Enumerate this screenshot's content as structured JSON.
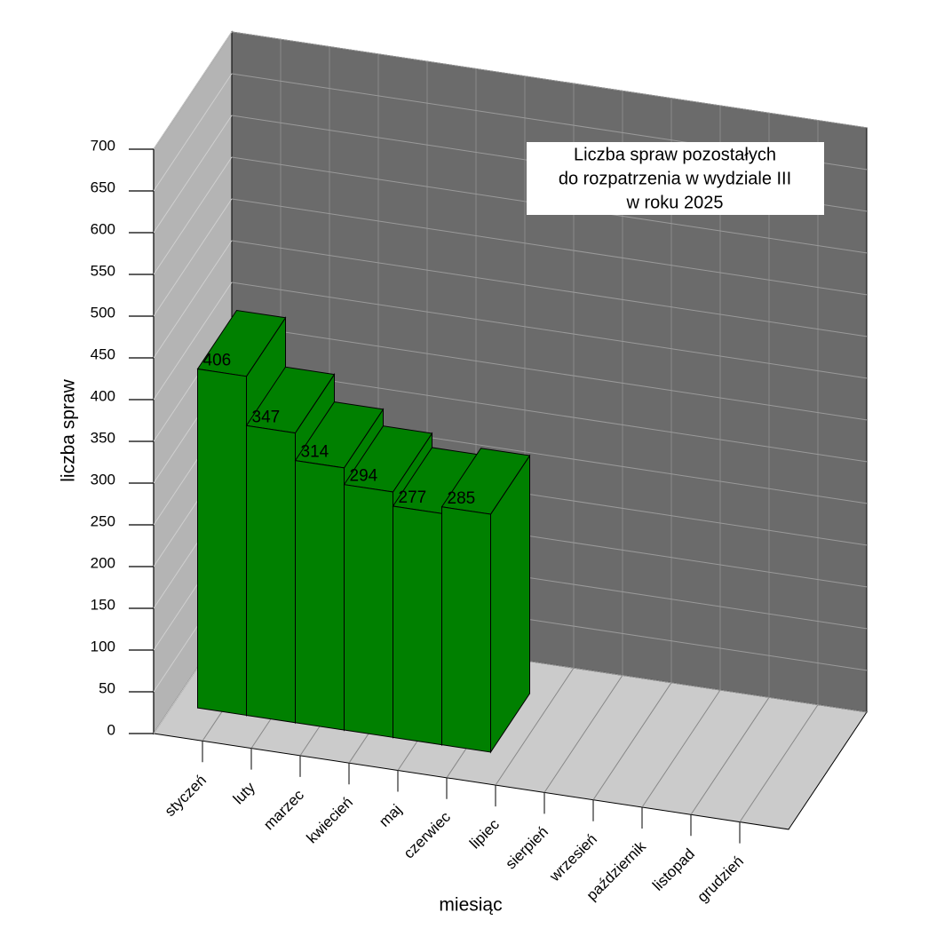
{
  "chart_data": {
    "type": "bar3d",
    "title": [
      "Liczba spraw pozostałych",
      "do rozpatrzenia w  wydziale III",
      "w roku 2025"
    ],
    "x_label": "miesiąc",
    "y_label": "liczba spraw",
    "categories": [
      "styczeń",
      "luty",
      "marzec",
      "kwiecień",
      "maj",
      "czerwiec",
      "lipiec",
      "sierpień",
      "wrzesień",
      "październik",
      "listopad",
      "grudzień"
    ],
    "values": [
      406,
      347,
      314,
      294,
      277,
      285,
      null,
      null,
      null,
      null,
      null,
      null
    ],
    "color": "#008000",
    "ylim": [
      0,
      700
    ],
    "yticks": [
      0,
      50,
      100,
      150,
      200,
      250,
      300,
      350,
      400,
      450,
      500,
      550,
      600,
      650,
      700
    ],
    "grid": true
  }
}
